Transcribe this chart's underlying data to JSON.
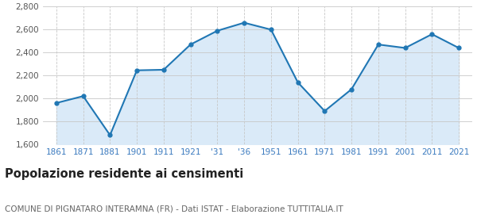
{
  "years": [
    1861,
    1871,
    1881,
    1901,
    1911,
    1921,
    1931,
    1936,
    1951,
    1961,
    1971,
    1981,
    1991,
    2001,
    2011,
    2021
  ],
  "x_labels": [
    "1861",
    "1871",
    "1881",
    "1901",
    "1911",
    "1921",
    "'31",
    "'36",
    "1951",
    "1961",
    "1971",
    "1981",
    "1991",
    "2001",
    "2011",
    "2021"
  ],
  "population": [
    1960,
    2020,
    1680,
    2245,
    2250,
    2470,
    2590,
    2660,
    2600,
    2140,
    1890,
    2080,
    2470,
    2440,
    2560,
    2440
  ],
  "ylim": [
    1600,
    2800
  ],
  "yticks": [
    1600,
    1800,
    2000,
    2200,
    2400,
    2600,
    2800
  ],
  "line_color": "#2077b4",
  "fill_color": "#daeaf8",
  "marker_color": "#2077b4",
  "bg_color": "#ffffff",
  "grid_color": "#c8c8c8",
  "title": "Popolazione residente ai censimenti",
  "title_fontsize": 10.5,
  "subtitle": "COMUNE DI PIGNATARO INTERAMNA (FR) - Dati ISTAT - Elaborazione TUTTITALIA.IT",
  "subtitle_fontsize": 7.5,
  "axis_label_color": "#3a7abf",
  "tick_fontsize": 7.5,
  "ytick_color": "#555555"
}
